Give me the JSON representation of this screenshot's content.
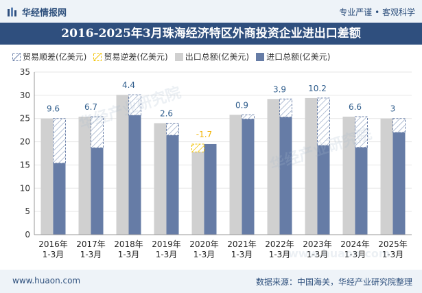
{
  "header": {
    "brand_name": "华经情报网",
    "slogan": "专业严谨 • 客观科学"
  },
  "chart_data": {
    "type": "bar",
    "title": "2016-2025年3月珠海经济特区外商投资企业进出口差额",
    "categories": [
      "2016年\n1-3月",
      "2017年\n1-3月",
      "2018年\n1-3月",
      "2019年\n1-3月",
      "2020年\n1-3月",
      "2021年\n1-3月",
      "2022年\n1-3月",
      "2023年\n1-3月",
      "2024年\n1-3月",
      "2025年\n1-3月"
    ],
    "series": [
      {
        "name": "贸易顺差(亿美元)",
        "values": [
          9.6,
          6.7,
          4.4,
          2.6,
          null,
          0.9,
          3.9,
          10.2,
          6.6,
          3
        ]
      },
      {
        "name": "贸易逆差(亿美元)",
        "values": [
          null,
          null,
          null,
          null,
          -1.7,
          null,
          null,
          null,
          null,
          null
        ]
      },
      {
        "name": "出口总额(亿美元)",
        "values": [
          25.0,
          25.4,
          30.1,
          24.0,
          17.8,
          25.8,
          29.2,
          29.4,
          25.4,
          25.0
        ]
      },
      {
        "name": "进口总额(亿美元)",
        "values": [
          15.4,
          18.7,
          25.7,
          21.4,
          19.5,
          24.9,
          25.3,
          19.2,
          18.8,
          22.0
        ]
      }
    ],
    "ylim": [
      0,
      35
    ],
    "yticks": [
      0,
      5,
      10,
      15,
      20,
      25,
      30,
      35
    ],
    "legend_position": "top-left",
    "colors": {
      "export": "#d0d0d0",
      "import": "#667ca6",
      "surplus_stroke": "#6d82aa",
      "deficit_stroke": "#f2c200",
      "label": "#2f5d8c",
      "deficit_label": "#f2b400",
      "title_bg": "#2f4f7e"
    }
  },
  "footer": {
    "site": "www.huaon.com",
    "source": "数据来源：中国海关，华经产业研究院整理"
  },
  "watermarks": [
    "华经产业研究院",
    "华经产业研究院",
    "www.huaon.com"
  ]
}
